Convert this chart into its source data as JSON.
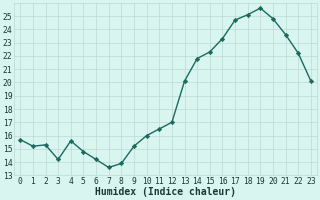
{
  "x": [
    0,
    1,
    2,
    3,
    4,
    5,
    6,
    7,
    8,
    9,
    10,
    11,
    12,
    13,
    14,
    15,
    16,
    17,
    18,
    19,
    20,
    21,
    22,
    23
  ],
  "y": [
    15.7,
    15.2,
    15.3,
    14.2,
    15.6,
    14.8,
    14.2,
    13.6,
    13.9,
    15.2,
    16.0,
    16.5,
    17.0,
    20.1,
    21.8,
    22.3,
    23.3,
    24.7,
    25.1,
    25.6,
    24.8,
    23.6,
    22.2,
    20.1
  ],
  "xlabel": "Humidex (Indice chaleur)",
  "line_color": "#1a6b5e",
  "marker": "D",
  "marker_size": 2.2,
  "bg_color": "#d8f5f0",
  "grid_color": "#c0d8d4",
  "ylim": [
    13,
    26
  ],
  "yticks": [
    13,
    14,
    15,
    16,
    17,
    18,
    19,
    20,
    21,
    22,
    23,
    24,
    25
  ],
  "xticks": [
    0,
    1,
    2,
    3,
    4,
    5,
    6,
    7,
    8,
    9,
    10,
    11,
    12,
    13,
    14,
    15,
    16,
    17,
    18,
    19,
    20,
    21,
    22,
    23
  ],
  "tick_label_color": "#1a3a30",
  "xlabel_color": "#1a3a30",
  "xlabel_fontsize": 7,
  "tick_fontsize": 5.8,
  "linewidth": 1.0
}
